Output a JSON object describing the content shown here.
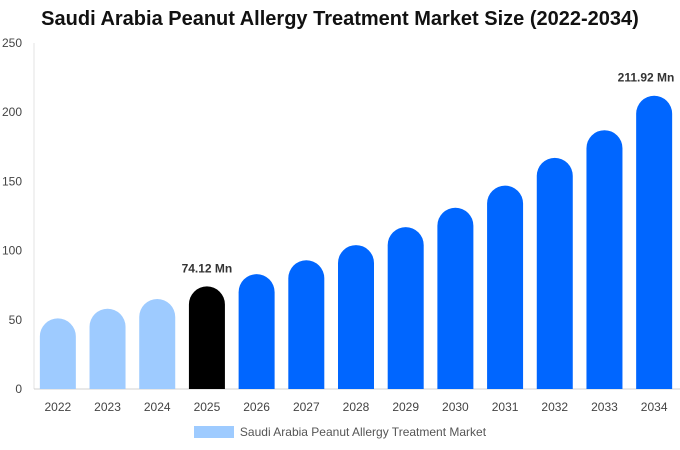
{
  "chart_data": {
    "type": "bar",
    "title": "Saudi Arabia Peanut Allergy Treatment Market Size (2022-2034)",
    "xlabel": "",
    "ylabel": "",
    "categories": [
      "2022",
      "2023",
      "2024",
      "2025",
      "2026",
      "2027",
      "2028",
      "2029",
      "2030",
      "2031",
      "2032",
      "2033",
      "2034"
    ],
    "series": [
      {
        "name": "Saudi Arabia Peanut Allergy Treatment Market",
        "values": [
          51,
          58,
          65,
          74.12,
          83,
          93,
          104,
          117,
          131,
          147,
          167,
          187,
          211.92
        ]
      }
    ],
    "ylim": [
      0,
      250
    ],
    "yticks": [
      "0",
      "50",
      "100",
      "150",
      "200",
      "250"
    ],
    "data_labels": [
      {
        "index": 3,
        "text": "74.12 Mn"
      },
      {
        "index": 12,
        "text": "211.92 Mn"
      }
    ],
    "colors": {
      "historical": "#9ecbff",
      "current": "#000000",
      "forecast": "#0066ff"
    },
    "grid": false,
    "legend_position": "bottom"
  }
}
